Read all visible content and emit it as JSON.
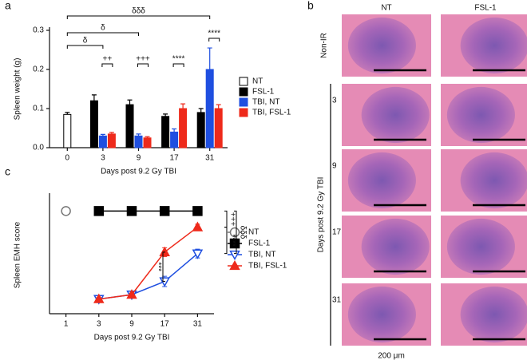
{
  "chart_data": [
    {
      "type": "bar",
      "panel_label": "a",
      "y_label": "Spleen weight (g)",
      "x_label": "Days post 9.2 Gy TBI",
      "categories": [
        "0",
        "3",
        "9",
        "17",
        "31"
      ],
      "ylim": [
        0,
        0.3
      ],
      "yticks": [
        {
          "value": 0,
          "label": "0.0"
        },
        0.1,
        0.2,
        0.3
      ],
      "series": [
        {
          "name": "NT",
          "color": "#ffffff",
          "values": [
            0.085,
            null,
            null,
            null,
            null
          ],
          "errors": [
            0.005,
            null,
            null,
            null,
            null
          ]
        },
        {
          "name": "FSL-1",
          "color": "#000000",
          "values": [
            null,
            0.12,
            0.11,
            0.08,
            0.09
          ],
          "errors": [
            null,
            0.015,
            0.012,
            0.006,
            0.01
          ]
        },
        {
          "name": "TBI, NT",
          "color": "#1f4fe0",
          "values": [
            null,
            0.03,
            0.03,
            0.04,
            0.2
          ],
          "errors": [
            null,
            0.004,
            0.005,
            0.008,
            0.055
          ]
        },
        {
          "name": "TBI, FSL-1",
          "color": "#ee2a1b",
          "values": [
            null,
            0.035,
            0.025,
            0.1,
            0.1
          ],
          "errors": [
            null,
            0.004,
            0.003,
            0.012,
            0.01
          ]
        }
      ],
      "annotations": [
        "δδδ",
        "δ",
        "δ",
        "++",
        "+++",
        "****",
        "****"
      ]
    },
    {
      "type": "line",
      "panel_label": "c",
      "y_label": "Spleen EMH score",
      "x_label": "Days post 9.2 Gy TBI",
      "categories": [
        "1",
        "3",
        "9",
        "17",
        "31"
      ],
      "ylim": [
        0,
        8
      ],
      "series": [
        {
          "name": "NT",
          "color": "#777777",
          "marker": "circle-open",
          "values": [
            7,
            null,
            null,
            null,
            null
          ]
        },
        {
          "name": "FSL-1",
          "color": "#000000",
          "marker": "square",
          "values": [
            null,
            7,
            7,
            7,
            7
          ]
        },
        {
          "name": "TBI, NT",
          "color": "#1f4fe0",
          "marker": "triangle-down-open",
          "values": [
            null,
            1,
            1.3,
            2.2,
            4.1
          ],
          "errors": [
            null,
            0.1,
            0.1,
            0.35,
            0.3
          ]
        },
        {
          "name": "TBI, FSL-1",
          "color": "#ee2a1b",
          "marker": "triangle-up",
          "values": [
            null,
            1,
            1.3,
            4.2,
            5.9
          ],
          "errors": [
            null,
            0.1,
            0.1,
            0.3,
            0.2
          ]
        }
      ],
      "annotations": [
        "+++",
        "δδδ",
        "****",
        "***"
      ]
    }
  ],
  "micrographs": {
    "panel_label": "b",
    "columns": [
      "NT",
      "FSL-1"
    ],
    "rows": [
      "Non-IR",
      "3",
      "9",
      "17",
      "31"
    ],
    "axis_label": "Days post 9.2 Gy TBI",
    "scale_bar": "200 μm"
  }
}
